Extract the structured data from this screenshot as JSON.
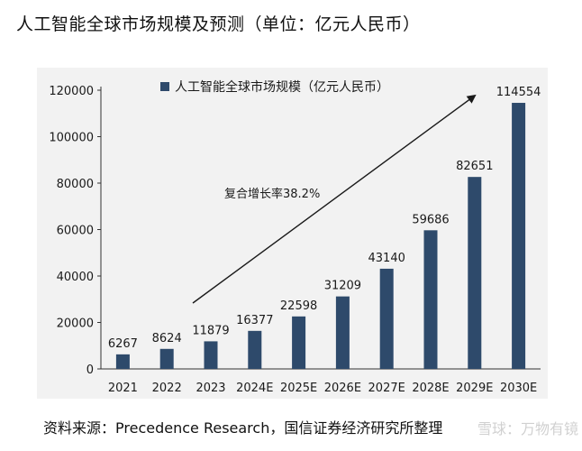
{
  "title": "人工智能全球市场规模及预测（单位：亿元人民币）",
  "source": "资料来源：Precedence Research，国信证券经济研究所整理",
  "watermark": "雪球：万物有镜",
  "annotation": "复合增长率38.2%",
  "colors": {
    "bar": "#2e4a6b",
    "panel": "#f2f2f2",
    "arrow": "#1a1a1a"
  },
  "chart_data": {
    "type": "bar",
    "categories": [
      "2021",
      "2022",
      "2023",
      "2024E",
      "2025E",
      "2026E",
      "2027E",
      "2028E",
      "2029E",
      "2030E"
    ],
    "series": [
      {
        "name": "人工智能全球市场规模（亿元人民币）",
        "values": [
          6267,
          8624,
          11879,
          16377,
          22598,
          31209,
          43140,
          59686,
          82651,
          114554
        ]
      }
    ],
    "yticks": [
      0,
      20000,
      40000,
      60000,
      80000,
      100000,
      120000
    ],
    "ylim": [
      0,
      120000
    ],
    "legend": "top-left",
    "grid": false
  }
}
